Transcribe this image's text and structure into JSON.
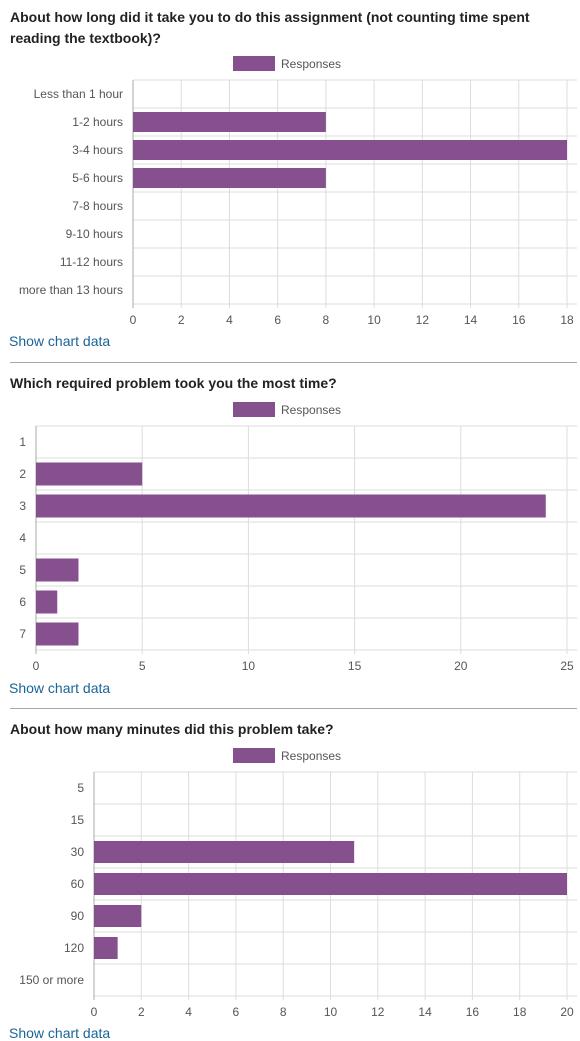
{
  "charts": [
    {
      "title": "About how long did it take you to do this assignment (not counting time spent reading the textbook)?",
      "show_data_label": "Show chart data"
    },
    {
      "title": "Which required problem took you the most time?",
      "show_data_label": "Show chart data"
    },
    {
      "title": "About how many minutes did this problem take?",
      "show_data_label": "Show chart data"
    }
  ],
  "colors": {
    "bar": "#86508f",
    "grid": "#dddddd",
    "axis": "#aaaaaa",
    "link": "#1a6496"
  },
  "chart_data": [
    {
      "type": "bar",
      "orientation": "horizontal",
      "title": "About how long did it take you to do this assignment (not counting time spent reading the textbook)?",
      "legend": [
        "Responses"
      ],
      "legend_position": "top-center",
      "categories": [
        "Less than 1 hour",
        "1-2 hours",
        "3-4 hours",
        "5-6 hours",
        "7-8 hours",
        "9-10 hours",
        "11-12 hours",
        "more than 13 hours"
      ],
      "series": [
        {
          "name": "Responses",
          "values": [
            0,
            8,
            18,
            8,
            0,
            0,
            0,
            0
          ]
        }
      ],
      "xlim": [
        0,
        18
      ],
      "xticks": [
        0,
        2,
        4,
        6,
        8,
        10,
        12,
        14,
        16,
        18
      ],
      "grid": true
    },
    {
      "type": "bar",
      "orientation": "horizontal",
      "title": "Which required problem took you the most time?",
      "legend": [
        "Responses"
      ],
      "legend_position": "top-center",
      "categories": [
        "1",
        "2",
        "3",
        "4",
        "5",
        "6",
        "7"
      ],
      "series": [
        {
          "name": "Responses",
          "values": [
            0,
            5,
            24,
            0,
            2,
            1,
            2
          ]
        }
      ],
      "xlim": [
        0,
        25
      ],
      "xticks": [
        0,
        5,
        10,
        15,
        20,
        25
      ],
      "grid": true
    },
    {
      "type": "bar",
      "orientation": "horizontal",
      "title": "About how many minutes did this problem take?",
      "legend": [
        "Responses"
      ],
      "legend_position": "top-center",
      "categories": [
        "5",
        "15",
        "30",
        "60",
        "90",
        "120",
        "150 or more"
      ],
      "series": [
        {
          "name": "Responses",
          "values": [
            0,
            0,
            11,
            20,
            2,
            1,
            0
          ]
        }
      ],
      "xlim": [
        0,
        20
      ],
      "xticks": [
        0,
        2,
        4,
        6,
        8,
        10,
        12,
        14,
        16,
        18,
        20
      ],
      "grid": true
    }
  ]
}
